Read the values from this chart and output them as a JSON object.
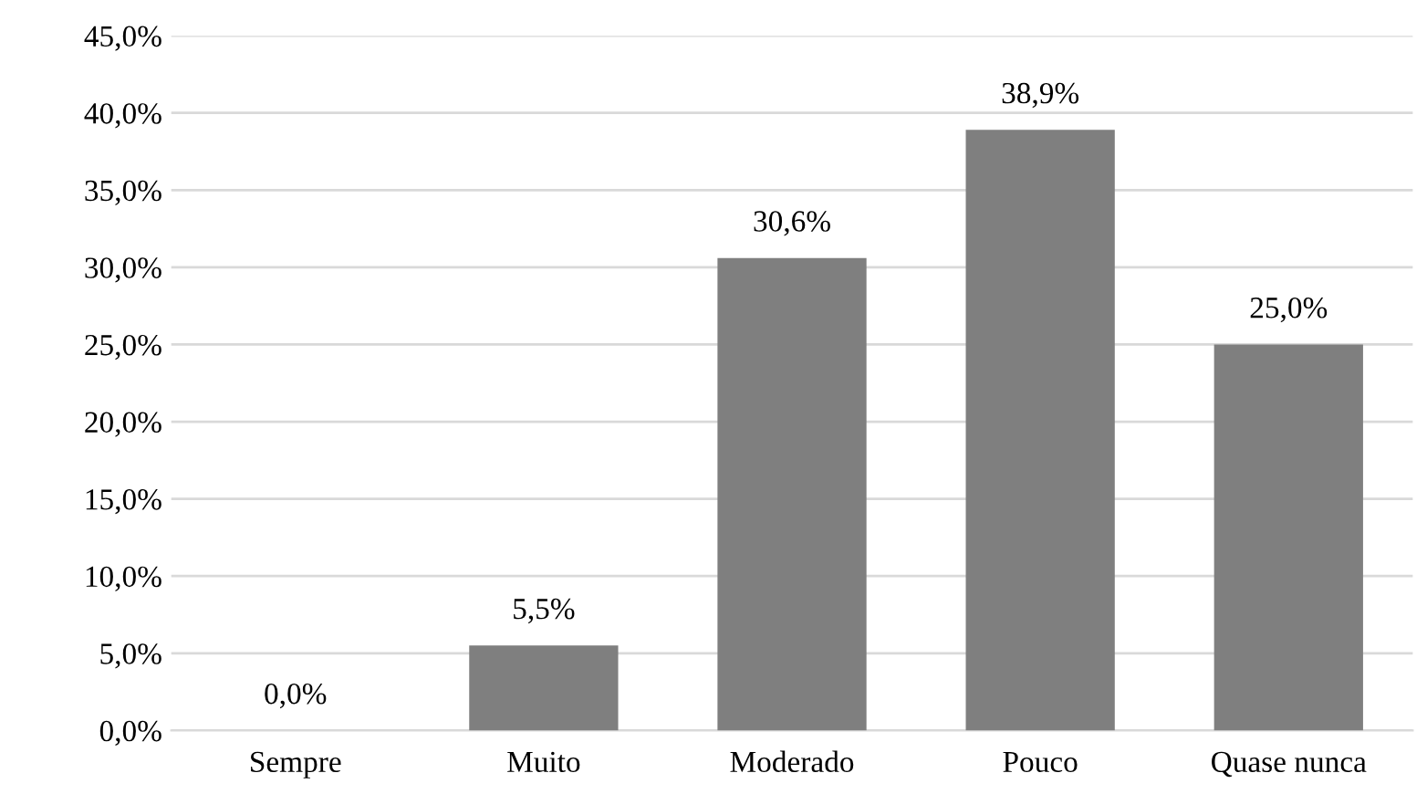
{
  "chart_data": {
    "type": "bar",
    "categories": [
      "Sempre",
      "Muito",
      "Moderado",
      "Pouco",
      "Quase nunca"
    ],
    "values": [
      0.0,
      5.5,
      30.6,
      38.9,
      25.0
    ],
    "value_labels": [
      "0,0%",
      "5,5%",
      "30,6%",
      "38,9%",
      "25,0%"
    ],
    "color": "#7f7f7f",
    "ylim": [
      0,
      45
    ],
    "yticks": [
      {
        "value": 0,
        "label": "0,0%"
      },
      {
        "value": 5,
        "label": "5,0%"
      },
      {
        "value": 10,
        "label": "10,0%"
      },
      {
        "value": 15,
        "label": "15,0%"
      },
      {
        "value": 20,
        "label": "20,0%"
      },
      {
        "value": 25,
        "label": "25,0%"
      },
      {
        "value": 30,
        "label": "30,0%"
      },
      {
        "value": 35,
        "label": "35,0%"
      },
      {
        "value": 40,
        "label": "40,0%"
      },
      {
        "value": 45,
        "label": "45,0%"
      }
    ],
    "grid": "y",
    "legend": false
  }
}
